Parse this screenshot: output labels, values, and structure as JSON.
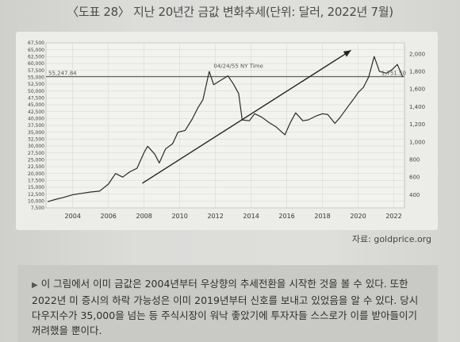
{
  "title": "〈도표 28〉 지난 20년간 금값 변화추세(단위: 달러, 2022년 7월)",
  "source": "자료: goldprice.org",
  "note": {
    "bullet": "▶",
    "text": "이 그림에서 이미 금값은 2004년부터 우상향의 추세전환을 시작한 것을 볼 수 있다. 또한 2022년 미 증시의 하락 가능성은 이미 2019년부터 신호를 보내고 있었음을 알 수 있다. 당시 다우지수가 35,000을 넘는 등 주식시장이 워낙 좋았기에 투자자들 스스로가 이를 받아들이기 꺼려했을 뿐이다."
  },
  "chart_data": {
    "type": "line",
    "title": "",
    "xlabel": "",
    "ylabel": "",
    "xlim": [
      2002.5,
      2022.6
    ],
    "ylim_left": [
      7500,
      67500
    ],
    "ylim_right": [
      250,
      2125
    ],
    "x_ticks": [
      "2004",
      "2006",
      "2008",
      "2010",
      "2012",
      "2014",
      "2016",
      "2018",
      "2020",
      "2022"
    ],
    "left_ticks": [
      "67,500",
      "65,000",
      "62,500",
      "60,000",
      "57,500",
      "55,000",
      "52,500",
      "50,000",
      "47,500",
      "45,000",
      "42,500",
      "40,000",
      "37,500",
      "35,000",
      "32,500",
      "30,000",
      "27,500",
      "25,000",
      "22,500",
      "20,000",
      "17,500",
      "15,000",
      "12,500",
      "10,000",
      "7,500"
    ],
    "right_ticks": [
      "2,000",
      "1,800",
      "1,600",
      "1,400",
      "1,200",
      "1,000",
      "800",
      "600",
      "400"
    ],
    "grid": true,
    "series": [
      {
        "name": "",
        "axis": "right",
        "color": "#2a2a2a",
        "x": [
          2002.6,
          2003.0,
          2003.5,
          2004.0,
          2004.5,
          2005.0,
          2005.5,
          2006.0,
          2006.4,
          2006.8,
          2007.2,
          2007.6,
          2008.0,
          2008.2,
          2008.6,
          2008.85,
          2009.2,
          2009.6,
          2009.9,
          2010.3,
          2010.7,
          2011.0,
          2011.3,
          2011.65,
          2011.9,
          2012.3,
          2012.7,
          2013.0,
          2013.3,
          2013.5,
          2013.9,
          2014.2,
          2014.6,
          2015.0,
          2015.4,
          2015.9,
          2016.2,
          2016.5,
          2016.9,
          2017.2,
          2017.6,
          2018.0,
          2018.3,
          2018.7,
          2019.0,
          2019.5,
          2019.8,
          2020.0,
          2020.3,
          2020.6,
          2020.9,
          2021.2,
          2021.6,
          2021.9,
          2022.2,
          2022.5
        ],
        "y": [
          320,
          345,
          370,
          400,
          415,
          430,
          440,
          520,
          640,
          600,
          660,
          700,
          880,
          950,
          860,
          760,
          920,
          980,
          1110,
          1130,
          1260,
          1380,
          1480,
          1800,
          1650,
          1700,
          1750,
          1660,
          1550,
          1250,
          1240,
          1320,
          1280,
          1220,
          1170,
          1080,
          1220,
          1330,
          1240,
          1250,
          1290,
          1320,
          1310,
          1210,
          1280,
          1420,
          1500,
          1560,
          1620,
          1740,
          1970,
          1800,
          1780,
          1820,
          1880,
          1740
        ]
      }
    ],
    "hlines": [
      {
        "label": "55,247.84",
        "left_value": 55247.84,
        "color": "#666"
      }
    ],
    "annotations": [
      {
        "text": "04/24/55 NY Time",
        "x": 2011.9,
        "y_right": 1840
      },
      {
        "text": "1,751.50",
        "x": 2021.3,
        "y_right": 1760
      }
    ],
    "trend_arrow": {
      "from": [
        2007.9,
        530
      ],
      "to": [
        2019.6,
        2040
      ],
      "axis": "right"
    }
  }
}
